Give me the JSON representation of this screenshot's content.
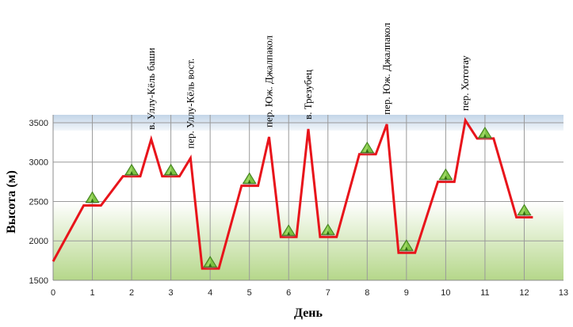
{
  "chart_data": {
    "type": "line",
    "xlabel": "День",
    "ylabel": "Высота (м)",
    "xlim": [
      0,
      13
    ],
    "ylim": [
      1500,
      3600
    ],
    "xticks": [
      "0",
      "1",
      "2",
      "3",
      "4",
      "5",
      "6",
      "7",
      "8",
      "9",
      "10",
      "11",
      "12",
      "13"
    ],
    "yticks": [
      "1500",
      "2000",
      "2500",
      "3000",
      "3500"
    ],
    "grid": true,
    "series": [
      {
        "color": "#e8141b",
        "x": [
          0,
          0.78,
          1.22,
          1.78,
          2.22,
          2.5,
          2.78,
          3.22,
          3.5,
          3.8,
          4.22,
          4.8,
          5.22,
          5.5,
          5.8,
          6.2,
          6.5,
          6.8,
          7.22,
          7.8,
          8.22,
          8.5,
          8.8,
          9.22,
          9.8,
          10.22,
          10.5,
          10.8,
          11.22,
          11.8,
          12.22
        ],
        "y": [
          1740,
          2450,
          2450,
          2820,
          2820,
          3290,
          2820,
          2820,
          3050,
          1650,
          1650,
          2700,
          2700,
          3320,
          2050,
          2050,
          3420,
          2050,
          2050,
          3100,
          3100,
          3480,
          1850,
          1850,
          2750,
          2750,
          3530,
          3300,
          3300,
          2300,
          2300
        ]
      }
    ],
    "camps": [
      {
        "day": 1,
        "elevation": 2550
      },
      {
        "day": 2,
        "elevation": 2900
      },
      {
        "day": 3,
        "elevation": 2900
      },
      {
        "day": 4,
        "elevation": 1730
      },
      {
        "day": 5,
        "elevation": 2790
      },
      {
        "day": 6,
        "elevation": 2130
      },
      {
        "day": 7,
        "elevation": 2140
      },
      {
        "day": 8,
        "elevation": 3180
      },
      {
        "day": 9,
        "elevation": 1940
      },
      {
        "day": 10,
        "elevation": 2840
      },
      {
        "day": 11,
        "elevation": 3370
      },
      {
        "day": 12,
        "elevation": 2390
      }
    ],
    "annotations": [
      {
        "text": "в. Уллу-Кёль баши",
        "x": 2.5,
        "y": 3290
      },
      {
        "text": "пер. Уллу-Кёль вост.",
        "x": 3.5,
        "y": 3050
      },
      {
        "text": "пер. Юж. Джалпакол",
        "x": 5.5,
        "y": 3320
      },
      {
        "text": "в. Трезубец",
        "x": 6.5,
        "y": 3420
      },
      {
        "text": "пер. Юж. Джалпакол",
        "x": 8.5,
        "y": 3480
      },
      {
        "text": "пер. Хототау",
        "x": 10.5,
        "y": 3530
      }
    ]
  }
}
